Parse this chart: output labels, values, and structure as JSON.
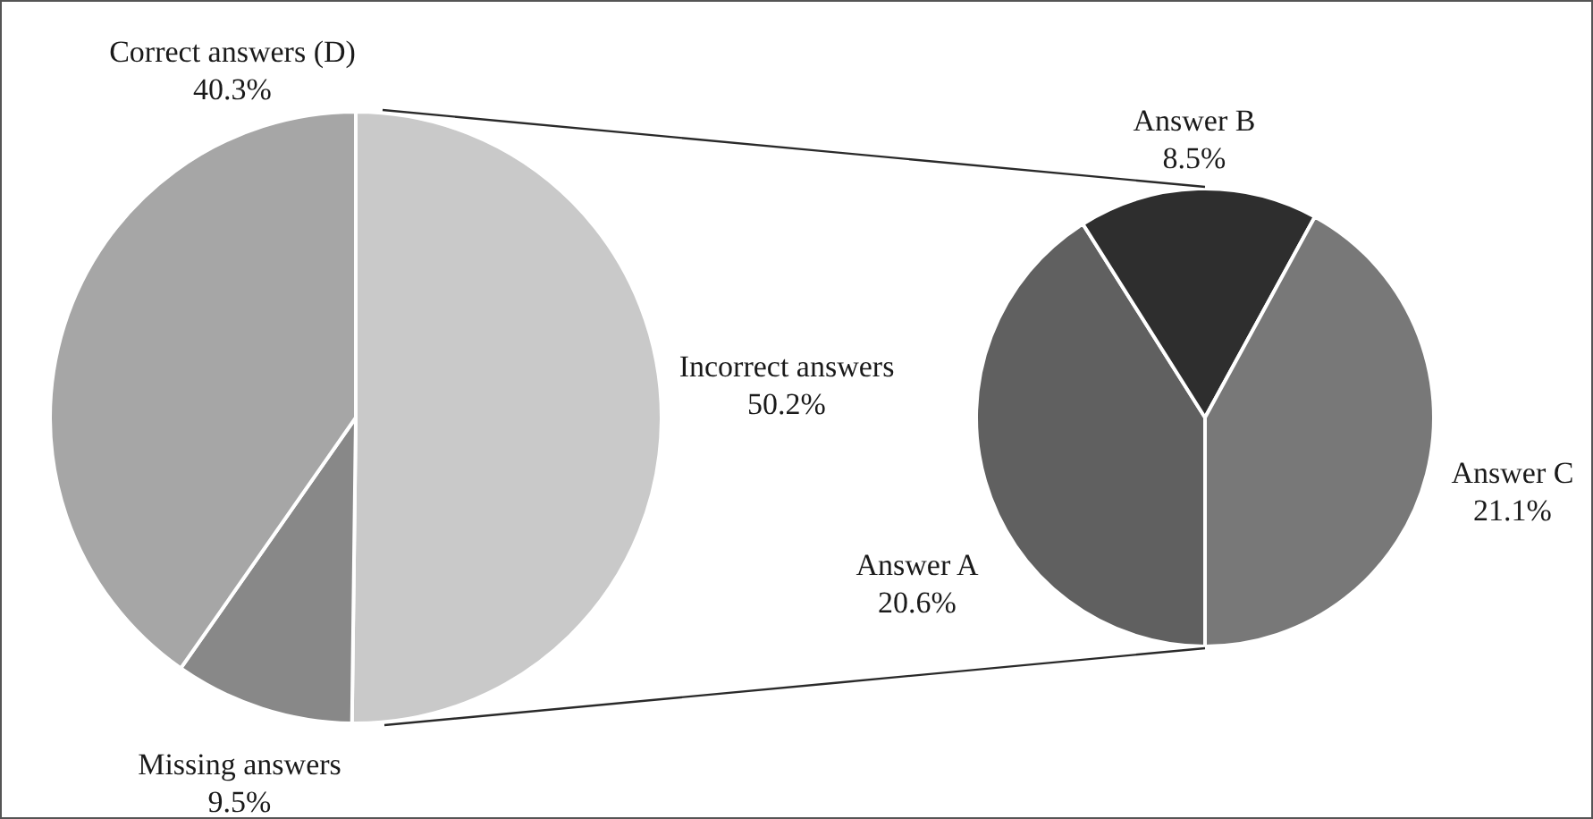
{
  "chart_data": [
    {
      "type": "pie",
      "categories": [
        "Incorrect answers",
        "Missing answers",
        "Correct answers (D)"
      ],
      "values": [
        50.2,
        9.5,
        40.3
      ],
      "colors": [
        "#c9c9c9",
        "#888888",
        "#a6a6a6"
      ],
      "value_labels": [
        "50.2%",
        "9.5%",
        "40.3%"
      ]
    },
    {
      "type": "pie",
      "categories": [
        "Answer A",
        "Answer B",
        "Answer C"
      ],
      "values": [
        20.6,
        8.5,
        21.1
      ],
      "colors": [
        "#606060",
        "#2e2e2e",
        "#787878"
      ],
      "value_labels": [
        "20.6%",
        "8.5%",
        "21.1%"
      ]
    }
  ]
}
